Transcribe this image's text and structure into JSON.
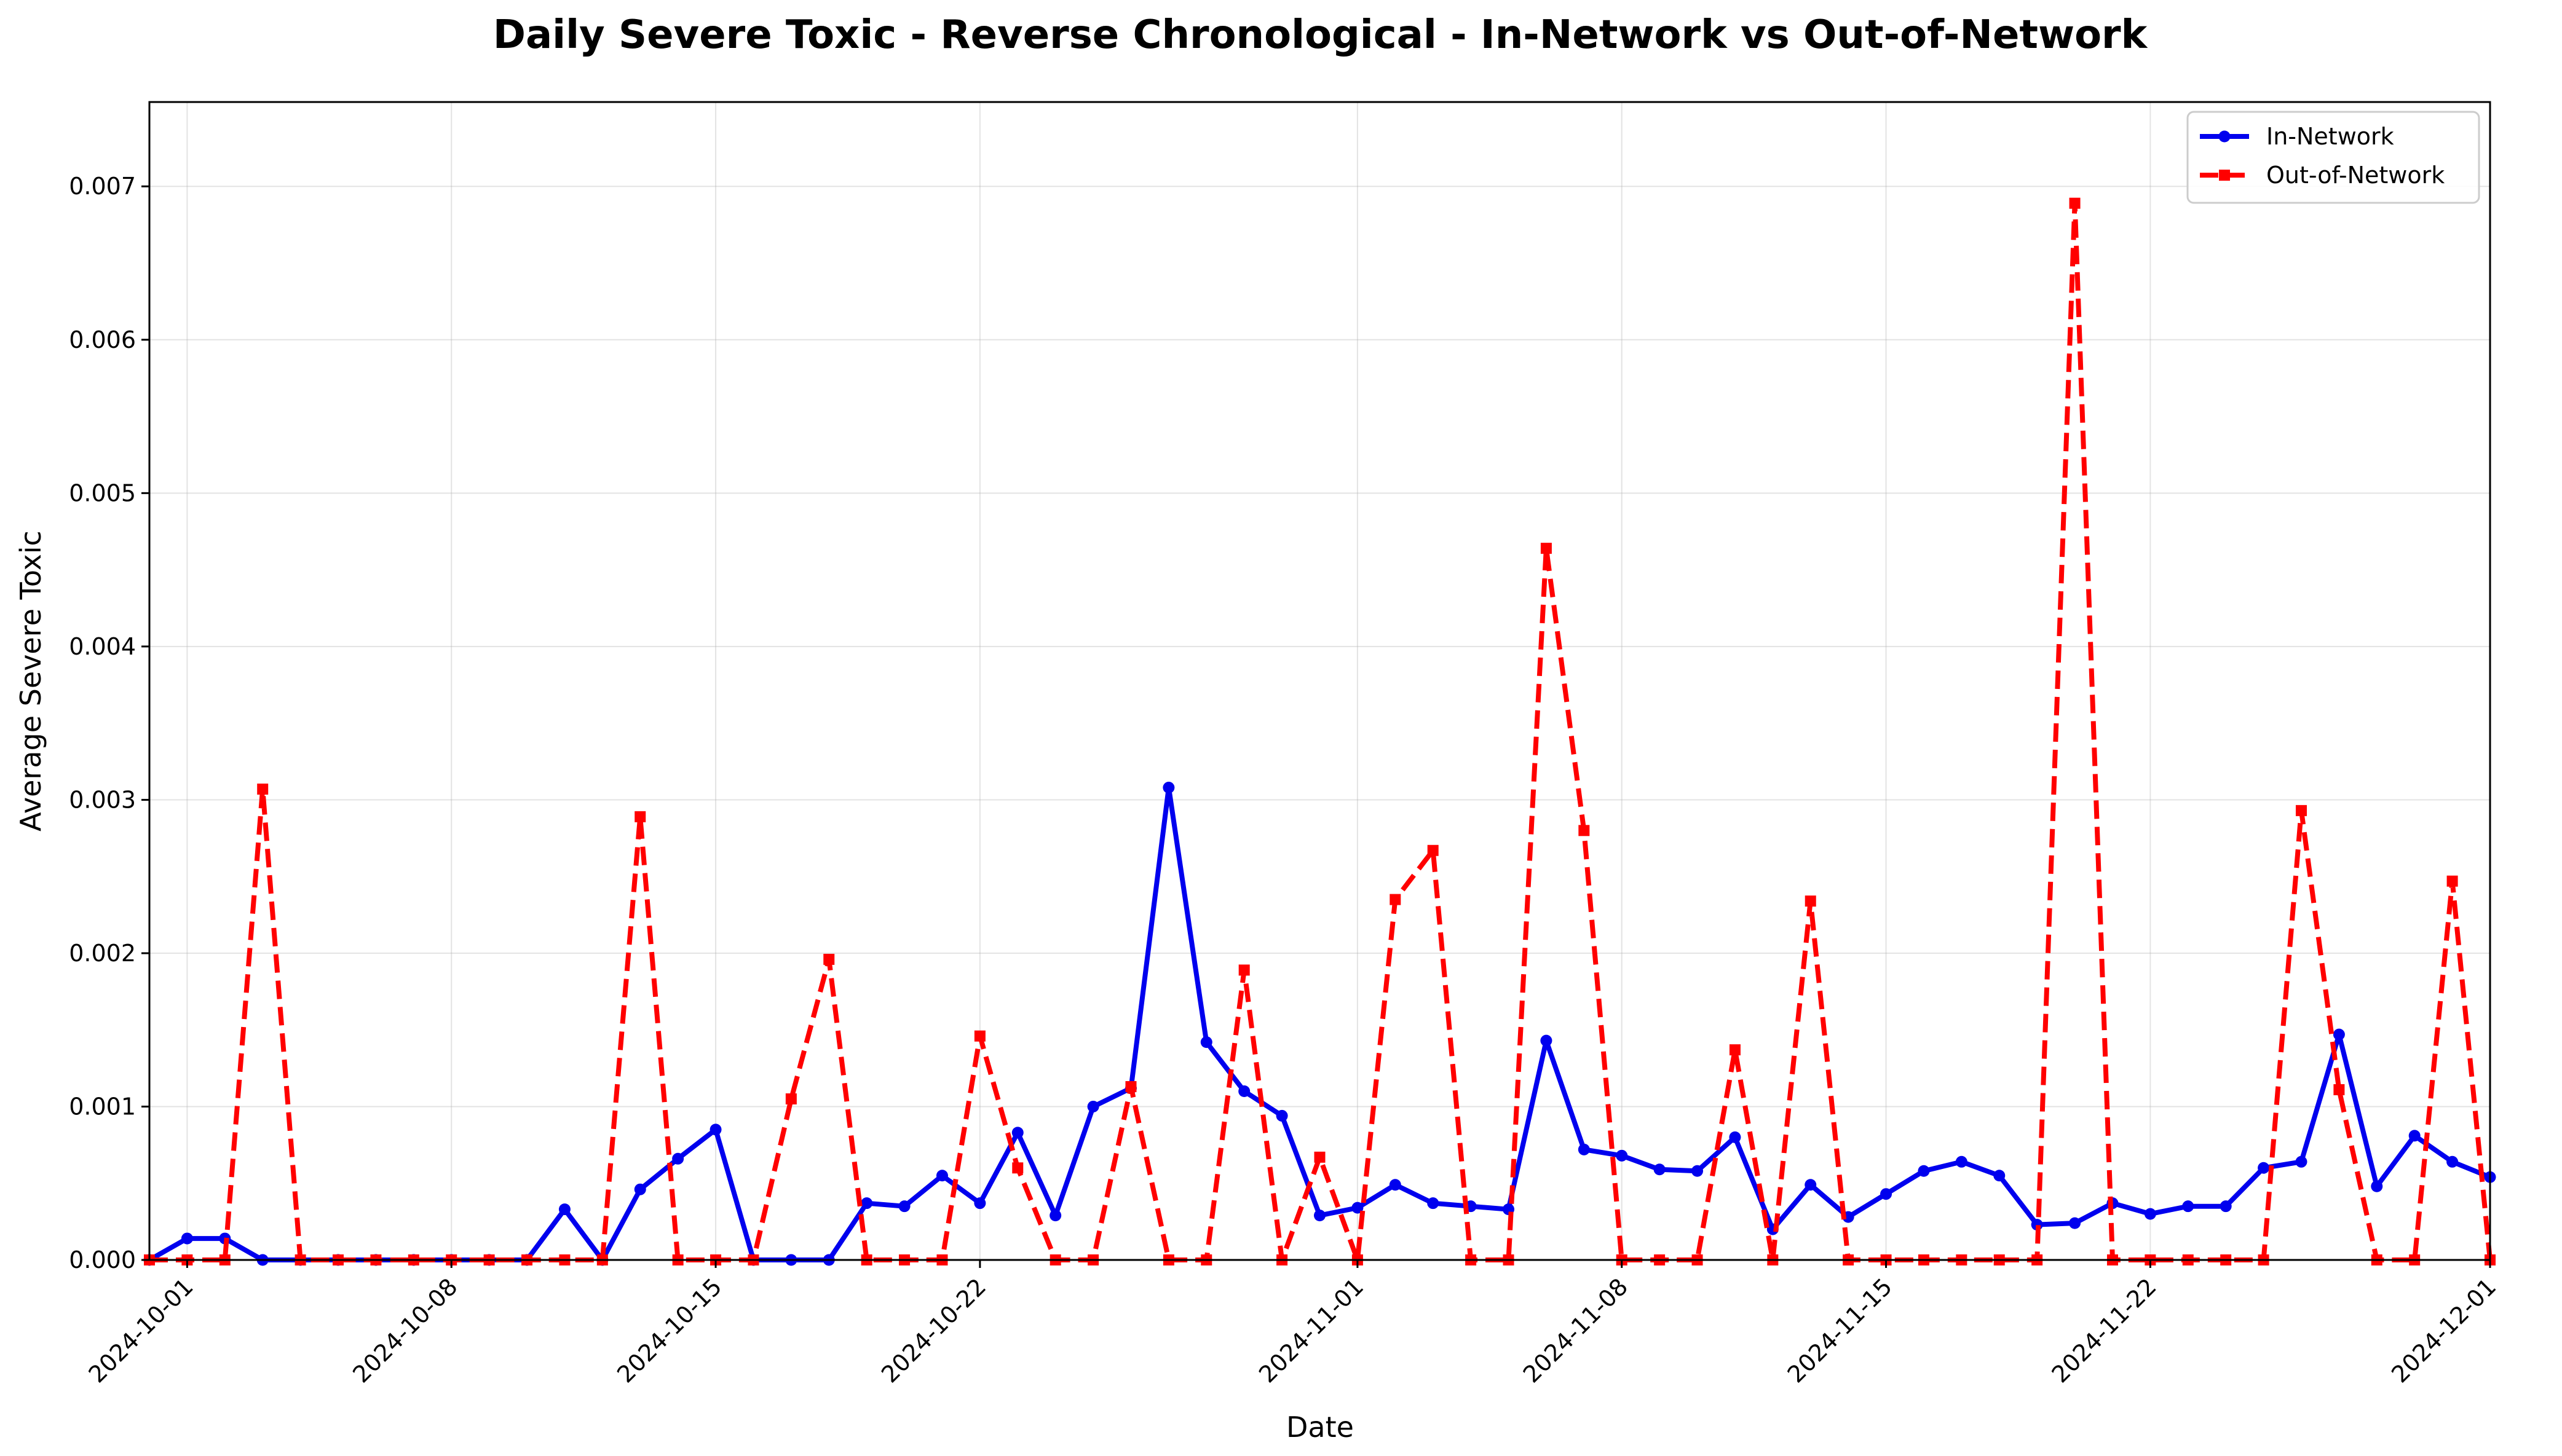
{
  "chart_data": {
    "type": "line",
    "title": "Daily Severe Toxic - Reverse Chronological - In-Network vs Out-of-Network",
    "xlabel": "Date",
    "ylabel": "Average Severe Toxic",
    "x_start": "2024-09-30",
    "x": [
      "2024-09-30",
      "2024-10-01",
      "2024-10-02",
      "2024-10-03",
      "2024-10-04",
      "2024-10-05",
      "2024-10-06",
      "2024-10-07",
      "2024-10-08",
      "2024-10-09",
      "2024-10-10",
      "2024-10-11",
      "2024-10-12",
      "2024-10-13",
      "2024-10-14",
      "2024-10-15",
      "2024-10-16",
      "2024-10-17",
      "2024-10-18",
      "2024-10-19",
      "2024-10-20",
      "2024-10-21",
      "2024-10-22",
      "2024-10-23",
      "2024-10-24",
      "2024-10-25",
      "2024-10-26",
      "2024-10-27",
      "2024-10-28",
      "2024-10-29",
      "2024-10-30",
      "2024-10-31",
      "2024-11-01",
      "2024-11-02",
      "2024-11-03",
      "2024-11-04",
      "2024-11-05",
      "2024-11-06",
      "2024-11-07",
      "2024-11-08",
      "2024-11-09",
      "2024-11-10",
      "2024-11-11",
      "2024-11-12",
      "2024-11-13",
      "2024-11-14",
      "2024-11-15",
      "2024-11-16",
      "2024-11-17",
      "2024-11-18",
      "2024-11-19",
      "2024-11-20",
      "2024-11-21",
      "2024-11-22",
      "2024-11-23",
      "2024-11-24",
      "2024-11-25",
      "2024-11-26",
      "2024-11-27",
      "2024-11-28",
      "2024-11-29",
      "2024-11-30",
      "2024-12-01"
    ],
    "xlim": [
      "2024-09-30",
      "2024-12-01"
    ],
    "ylim": [
      0,
      0.00755
    ],
    "x_ticks": [
      "2024-10-01",
      "2024-10-08",
      "2024-10-15",
      "2024-10-22",
      "2024-11-01",
      "2024-11-08",
      "2024-11-15",
      "2024-11-22",
      "2024-12-01"
    ],
    "y_ticks": [
      0.0,
      0.001,
      0.002,
      0.003,
      0.004,
      0.005,
      0.006,
      0.007
    ],
    "y_tick_labels": [
      "0.000",
      "0.001",
      "0.002",
      "0.003",
      "0.004",
      "0.005",
      "0.006",
      "0.007"
    ],
    "grid": true,
    "legend_position": "top-right",
    "series": [
      {
        "name": "In-Network",
        "color": "#0000ee",
        "line_style": "solid",
        "marker": "circle",
        "values": [
          0.0,
          0.00014,
          0.00014,
          0.0,
          0.0,
          0.0,
          0.0,
          0.0,
          0.0,
          0.0,
          0.0,
          0.00033,
          0.0,
          0.00046,
          0.00066,
          0.00085,
          0.0,
          0.0,
          0.0,
          0.00037,
          0.00035,
          0.00055,
          0.00037,
          0.00083,
          0.00029,
          0.001,
          0.00112,
          0.00308,
          0.00142,
          0.0011,
          0.00094,
          0.00029,
          0.00034,
          0.00049,
          0.00037,
          0.00035,
          0.00033,
          0.00143,
          0.00072,
          0.00068,
          0.00059,
          0.00058,
          0.0008,
          0.0002,
          0.00049,
          0.00028,
          0.00043,
          0.00058,
          0.00064,
          0.00055,
          0.00023,
          0.00024,
          0.00037,
          0.0003,
          0.00035,
          0.00035,
          0.0006,
          0.00064,
          0.00147,
          0.00048,
          0.00081,
          0.00064,
          0.00054
        ]
      },
      {
        "name": "Out-of-Network",
        "color": "#ff0000",
        "line_style": "dashed",
        "marker": "square",
        "values": [
          0.0,
          0.0,
          0.0,
          0.00307,
          0.0,
          0.0,
          0.0,
          0.0,
          0.0,
          0.0,
          0.0,
          0.0,
          0.0,
          0.00289,
          0.0,
          0.0,
          0.0,
          0.00105,
          0.00196,
          0.0,
          0.0,
          0.0,
          0.00146,
          0.0006,
          0.0,
          0.0,
          0.00113,
          0.0,
          0.0,
          0.00189,
          0.0,
          0.00067,
          0.0,
          0.00235,
          0.00267,
          0.0,
          0.0,
          0.00464,
          0.0028,
          0.0,
          0.0,
          0.0,
          0.00137,
          0.0,
          0.00234,
          0.0,
          0.0,
          0.0,
          0.0,
          0.0,
          0.0,
          0.00689,
          0.0,
          0.0,
          0.0,
          0.0,
          0.0,
          0.00293,
          0.00111,
          0.0,
          0.0,
          0.00247,
          0.0
        ]
      }
    ]
  }
}
